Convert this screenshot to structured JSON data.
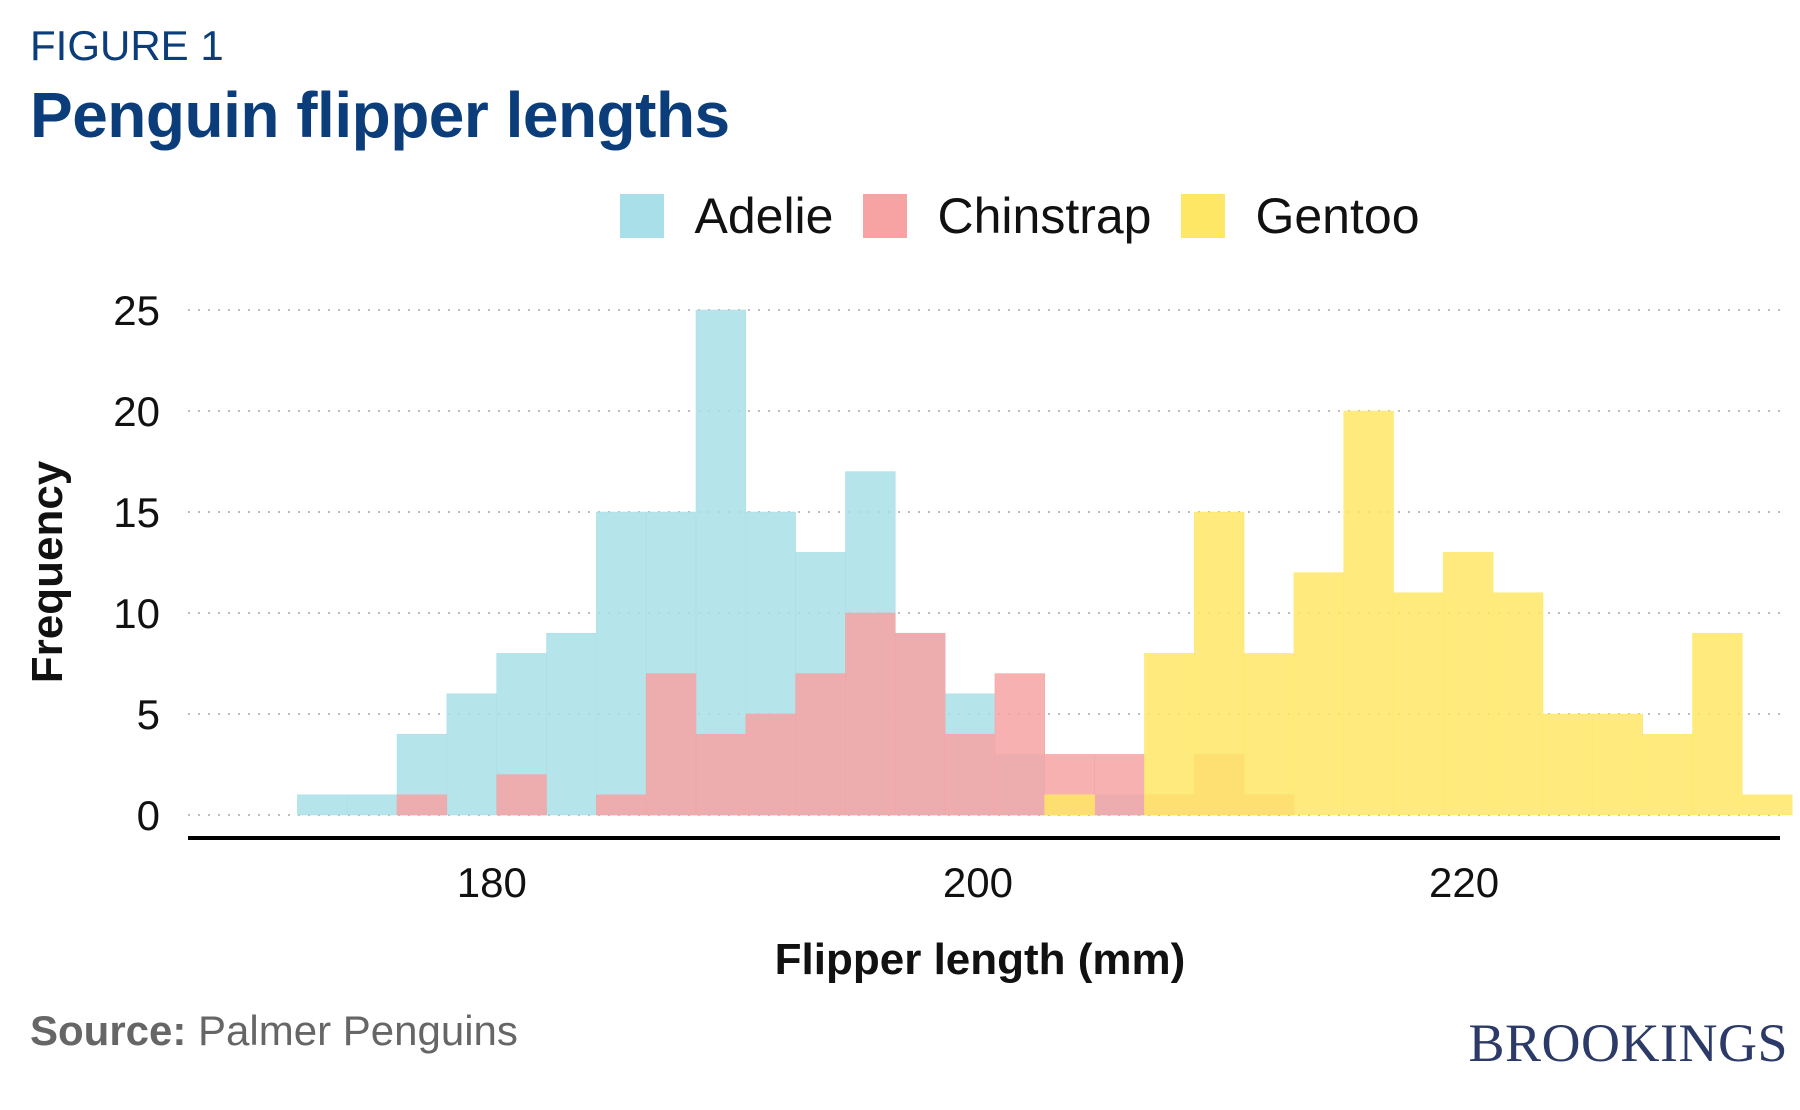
{
  "header": {
    "figure_label": "FIGURE 1",
    "title": "Penguin flipper lengths"
  },
  "legend": [
    {
      "name": "Adelie",
      "color": "#a8dfe8"
    },
    {
      "name": "Chinstrap",
      "color": "#f7a3a3"
    },
    {
      "name": "Gentoo",
      "color": "#ffe766"
    }
  ],
  "footer": {
    "source_label": "Source:",
    "source_text": "Palmer Penguins",
    "logo_text": "BROOKINGS"
  },
  "chart_data": {
    "type": "bar",
    "subtype": "overlapping histogram",
    "xlabel": "Flipper length (mm)",
    "ylabel": "Frequency",
    "xlim": [
      167.5,
      233
    ],
    "ylim": [
      0,
      25
    ],
    "xticks": [
      180,
      200,
      220
    ],
    "yticks": [
      0,
      5,
      10,
      15,
      20,
      25
    ],
    "grid": "horizontal dotted",
    "legend_position": "top",
    "bin_edges": [
      172,
      174.05,
      176.1,
      178.15,
      180.2,
      182.25,
      184.3,
      186.35,
      188.4,
      190.45,
      192.5,
      194.55,
      196.6,
      198.65,
      200.7,
      202.75,
      204.8,
      206.85,
      208.9,
      210.95,
      213,
      215.05,
      217.1,
      219.15,
      221.2,
      223.25,
      225.3,
      227.35,
      229.4,
      231.45
    ],
    "series": [
      {
        "name": "Adelie",
        "color": "#a8dfe8",
        "values": [
          1,
          1,
          4,
          6,
          8,
          9,
          15,
          15,
          25,
          15,
          13,
          17,
          9,
          6,
          3,
          1,
          1,
          0,
          0,
          0,
          0,
          0,
          0,
          0,
          0,
          0,
          0,
          0,
          0,
          0
        ]
      },
      {
        "name": "Chinstrap",
        "color": "#f7a3a3",
        "values": [
          0,
          0,
          1,
          0,
          2,
          0,
          1,
          7,
          4,
          5,
          7,
          10,
          9,
          4,
          7,
          3,
          3,
          1,
          3,
          1,
          0,
          0,
          0,
          0,
          0,
          0,
          0,
          0,
          0,
          0
        ]
      },
      {
        "name": "Gentoo",
        "color": "#ffe766",
        "values": [
          0,
          0,
          0,
          0,
          0,
          0,
          0,
          0,
          0,
          0,
          0,
          0,
          0,
          0,
          0,
          1,
          0,
          8,
          15,
          8,
          12,
          20,
          11,
          13,
          11,
          5,
          5,
          4,
          9,
          1
        ]
      }
    ]
  }
}
